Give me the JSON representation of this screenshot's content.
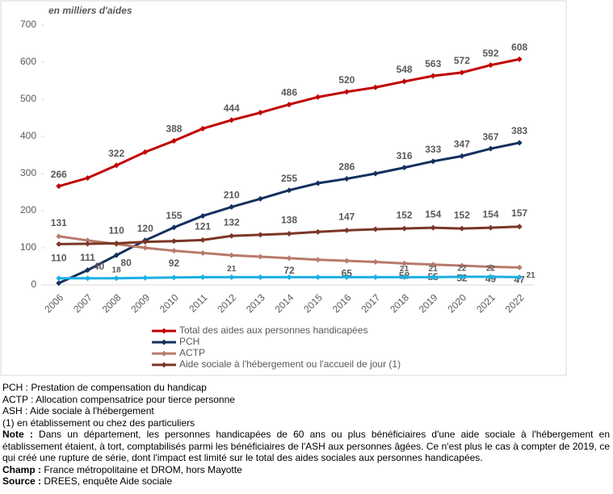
{
  "chart_data": {
    "type": "line",
    "subtitle": "en milliers d'aides",
    "categories": [
      "2006",
      "2007",
      "2008",
      "2009",
      "2010",
      "2011",
      "2012",
      "2013",
      "2014",
      "2015",
      "2016",
      "2017",
      "2018",
      "2019",
      "2020",
      "2021",
      "2022"
    ],
    "ylim": [
      0,
      700
    ],
    "yticks": [
      0,
      100,
      200,
      300,
      400,
      500,
      600,
      700
    ],
    "series": [
      {
        "name": "Total des aides aux personnes handicapées",
        "color": "#c00000",
        "values": [
          266,
          288,
          322,
          358,
          388,
          421,
          444,
          464,
          486,
          506,
          520,
          532,
          548,
          563,
          572,
          592,
          608
        ],
        "value_labels": [
          "266",
          null,
          "322",
          null,
          "388",
          null,
          "444",
          null,
          "486",
          null,
          "520",
          null,
          "548",
          "563",
          "572",
          "592",
          "608"
        ]
      },
      {
        "name": "PCH",
        "color": "#14305e",
        "values": [
          5,
          40,
          80,
          120,
          155,
          186,
          210,
          232,
          255,
          274,
          286,
          300,
          316,
          333,
          347,
          367,
          383
        ],
        "value_labels": [
          null,
          "40",
          "80",
          "120",
          "155",
          null,
          "210",
          null,
          "255",
          null,
          "286",
          null,
          "316",
          "333",
          "347",
          "367",
          "383"
        ]
      },
      {
        "name": "ACTP",
        "color": "#b87a6c",
        "values": [
          131,
          120,
          110,
          100,
          92,
          86,
          80,
          76,
          72,
          68,
          65,
          62,
          58,
          55,
          52,
          49,
          47
        ],
        "value_labels": [
          "131",
          null,
          "110",
          null,
          "92",
          null,
          null,
          null,
          "72",
          null,
          "65",
          null,
          "58",
          "55",
          "52",
          "49",
          "47"
        ]
      },
      {
        "name": "Aide sociale à l'hébergement ou l'accueil de jour (1)",
        "color": "#7b3626",
        "values": [
          110,
          111,
          112,
          116,
          118,
          121,
          132,
          135,
          138,
          143,
          147,
          150,
          152,
          154,
          152,
          154,
          157
        ],
        "value_labels": [
          "110",
          "111",
          null,
          null,
          null,
          "121",
          "132",
          null,
          "138",
          null,
          "147",
          null,
          "152",
          "154",
          "152",
          "154",
          "157"
        ]
      },
      {
        "color": "#1cb0e4",
        "values": [
          18,
          18,
          18,
          19,
          20,
          21,
          21,
          21,
          21,
          21,
          21,
          21,
          21,
          21,
          22,
          22,
          21
        ],
        "value_labels": [
          null,
          null,
          "18",
          null,
          null,
          null,
          "21",
          null,
          null,
          null,
          null,
          null,
          "21",
          "21",
          "22",
          "22",
          "21"
        ]
      }
    ]
  },
  "notes": {
    "lines": [
      "PCH : Prestation de compensation du handicap",
      "ACTP : Allocation compensatrice pour tierce personne",
      "ASH : Aide sociale à l'hébergement",
      "(1) en établissement ou chez des particuliers"
    ],
    "note": {
      "label": "Note :",
      "text": "Dans un département, les personnes handicapées de 60 ans ou plus bénéficiaires d'une aide sociale à l'hébergement en établissement étaient, à tort, comptabilisés parmi les bénéficiaires de l'ASH aux personnes âgées. Ce n'est plus le cas à compter de 2019, ce qui créé une rupture de série, dont l'impact est limité sur le total des aides sociales aux personnes handicapées."
    },
    "champ": {
      "label": "Champ :",
      "text": "France métropolitaine et DROM, hors Mayotte"
    },
    "source": {
      "label": "Source :",
      "text": "DREES, enquête Aide sociale"
    }
  }
}
